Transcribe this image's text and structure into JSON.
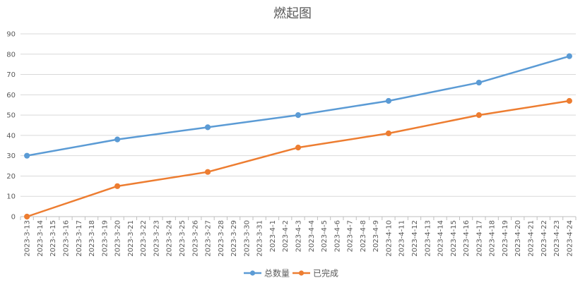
{
  "chart_data": {
    "type": "line",
    "title": "燃起图",
    "xlabel": "",
    "ylabel": "",
    "ylim": [
      0,
      90
    ],
    "yticks": [
      0,
      10,
      20,
      30,
      40,
      50,
      60,
      70,
      80,
      90
    ],
    "grid": true,
    "legend_position": "bottom",
    "categories": [
      "2023-3-13",
      "2023-3-14",
      "2023-3-15",
      "2023-3-16",
      "2023-3-17",
      "2023-3-18",
      "2023-3-19",
      "2023-3-20",
      "2023-3-21",
      "2023-3-22",
      "2023-3-23",
      "2023-3-24",
      "2023-3-25",
      "2023-3-26",
      "2023-3-27",
      "2023-3-28",
      "2023-3-29",
      "2023-3-30",
      "2023-3-31",
      "2023-4-1",
      "2023-4-2",
      "2023-4-3",
      "2023-4-4",
      "2023-4-5",
      "2023-4-6",
      "2023-4-7",
      "2023-4-8",
      "2023-4-9",
      "2023-4-10",
      "2023-4-11",
      "2023-4-12",
      "2023-4-13",
      "2023-4-14",
      "2023-4-15",
      "2023-4-16",
      "2023-4-17",
      "2023-4-18",
      "2023-4-19",
      "2023-4-20",
      "2023-4-21",
      "2023-4-22",
      "2023-4-23",
      "2023-4-24"
    ],
    "series": [
      {
        "name": "总数量",
        "color": "#5B9BD5",
        "points": [
          {
            "x": "2023-3-13",
            "y": 30
          },
          {
            "x": "2023-3-20",
            "y": 38
          },
          {
            "x": "2023-3-27",
            "y": 44
          },
          {
            "x": "2023-4-3",
            "y": 50
          },
          {
            "x": "2023-4-10",
            "y": 57
          },
          {
            "x": "2023-4-17",
            "y": 66
          },
          {
            "x": "2023-4-24",
            "y": 79
          }
        ]
      },
      {
        "name": "已完成",
        "color": "#ED7D31",
        "points": [
          {
            "x": "2023-3-13",
            "y": 0
          },
          {
            "x": "2023-3-20",
            "y": 15
          },
          {
            "x": "2023-3-27",
            "y": 22
          },
          {
            "x": "2023-4-3",
            "y": 34
          },
          {
            "x": "2023-4-10",
            "y": 41
          },
          {
            "x": "2023-4-17",
            "y": 50
          },
          {
            "x": "2023-4-24",
            "y": 57
          }
        ]
      }
    ]
  }
}
